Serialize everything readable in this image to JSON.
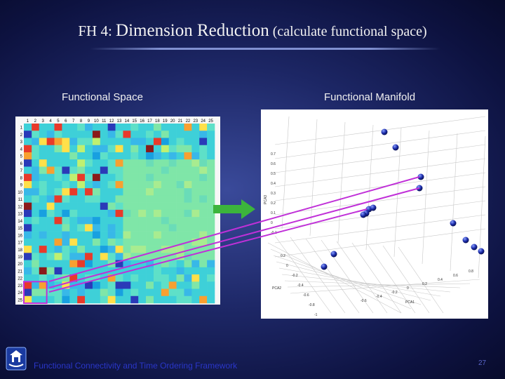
{
  "title": {
    "prefix": "FH 4: ",
    "main": "Dimension Reduction",
    "suffix": " (calculate functional space)"
  },
  "left_panel": {
    "label": "Functional Space",
    "col_labels": [
      "1",
      "2",
      "3",
      "4",
      "5",
      "6",
      "7",
      "8",
      "9",
      "10",
      "11",
      "12",
      "13",
      "14",
      "15",
      "16",
      "17",
      "18",
      "19",
      "20",
      "21",
      "22",
      "23",
      "24",
      "25"
    ],
    "row_labels": [
      "1",
      "2",
      "3",
      "4",
      "5",
      "6",
      "7",
      "8",
      "9",
      "10",
      "11",
      "12",
      "13",
      "14",
      "15",
      "16",
      "17",
      "18",
      "19",
      "20",
      "21",
      "22",
      "23",
      "24",
      "25"
    ]
  },
  "right_panel": {
    "label": "Functional Manifold",
    "axis_title_z": "PCA3",
    "axis_title_y": "PCA2",
    "axis_title_x": "PCA1",
    "z_ticks": [
      "0.7",
      "0.6",
      "0.5",
      "0.4",
      "0.3",
      "0.2",
      "0.1",
      "0",
      "-0.1"
    ],
    "y_ticks": [
      "0.2",
      "0",
      "-0.2",
      "-0.4",
      "-0.6",
      "-0.8",
      "-1"
    ],
    "x_ticks": [
      "0.8",
      "0.6",
      "0.4",
      "0.2",
      "0",
      "-0.2",
      "-0.4",
      "-0.6"
    ]
  },
  "colors": {
    "arrow_green": "#3cb43c",
    "link_purple": "#c030d8",
    "node_blue": "#1a2aa8",
    "footer_text": "#2a36c8"
  },
  "footer": {
    "text": "Functional Connectivity and Time Ordering Framework",
    "page_number": "27"
  }
}
